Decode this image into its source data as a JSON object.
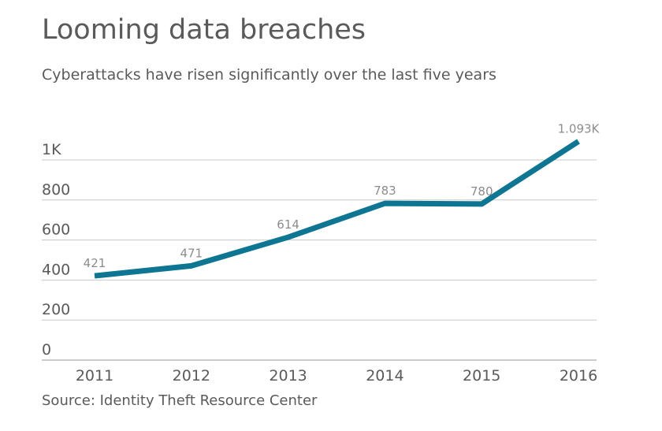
{
  "chart_data": {
    "type": "line",
    "title": "Looming data breaches",
    "subtitle": "Cyberattacks have risen significantly over the last five years",
    "source": "Source: Identity Theft Resource Center",
    "x": [
      "2011",
      "2012",
      "2013",
      "2014",
      "2015",
      "2016"
    ],
    "values": [
      421,
      471,
      614,
      783,
      780,
      1093
    ],
    "data_labels": [
      "421",
      "471",
      "614",
      "783",
      "780",
      "1.093K"
    ],
    "ylim": [
      0,
      1000
    ],
    "y_ticks": [
      0,
      200,
      400,
      600,
      800,
      1000
    ],
    "y_tick_labels": [
      "0",
      "200",
      "400",
      "600",
      "800",
      "1K"
    ],
    "grid": true,
    "line_color": "#0e7693",
    "grid_color": "#c8c8c8",
    "label_color": "#8c8c8c",
    "text_color": "#5a5a5a"
  }
}
